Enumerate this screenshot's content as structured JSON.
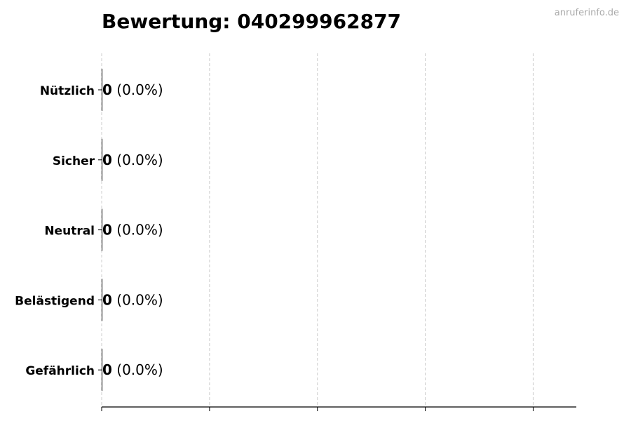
{
  "chart_data": {
    "type": "bar",
    "orientation": "horizontal",
    "title": "Bewertung: 040299962877",
    "watermark": "anruferinfo.de",
    "categories": [
      "Nützlich",
      "Sicher",
      "Neutral",
      "Belästigend",
      "Gefährlich"
    ],
    "values": [
      0,
      0,
      0,
      0,
      0
    ],
    "percent_labels": [
      "(0.0%)",
      "(0.0%)",
      "(0.0%)",
      "(0.0%)",
      "(0.0%)"
    ],
    "value_labels": [
      "0",
      "0",
      "0",
      "0",
      "0"
    ],
    "xlim": [
      0,
      4.4
    ],
    "x_ticks": [
      0,
      1,
      2,
      3,
      4
    ],
    "x_tick_labels_shown": false,
    "grid": "vertical dashed",
    "bar_color": "#000000",
    "grid_color": "#cccccc"
  }
}
